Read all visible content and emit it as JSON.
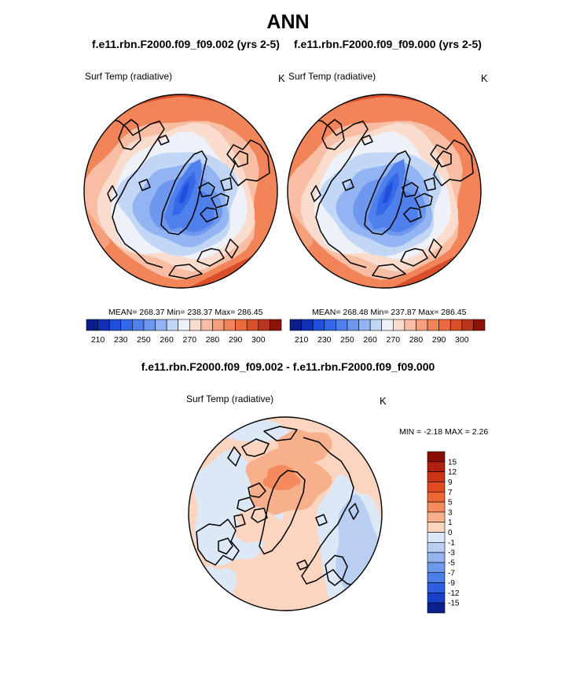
{
  "header": {
    "title": "ANN",
    "case1_title": "f.e11.rbn.F2000.f09_f09.002 (yrs 2-5)",
    "case2_title": "f.e11.rbn.F2000.f09_f09.000 (yrs 2-5)",
    "diff_title": "f.e11.rbn.F2000.f09_f09.002 - f.e11.rbn.F2000.f09_f09.000"
  },
  "panels": {
    "case1": {
      "variable": "Surf Temp (radiative)",
      "units": "K",
      "stats_text": "MEAN= 268.37  Min= 238.37  Max= 286.45"
    },
    "case2": {
      "variable": "Surf Temp (radiative)",
      "units": "K",
      "stats_text": "MEAN= 268.48  Min= 237.87  Max= 286.45"
    },
    "diff": {
      "variable": "Surf Temp (radiative)",
      "units": "K",
      "stats_text": "MIN =  -2.18 MAX =   2.26"
    }
  },
  "chart_data": [
    {
      "type": "polar-contour-map",
      "projection": "north-polar-stereographic",
      "title": "f.e11.rbn.F2000.f09_f09.002 (yrs 2-5)",
      "variable": "Surf Temp (radiative)",
      "units": "K",
      "mean": 268.37,
      "min": 238.37,
      "max": 286.45,
      "colorbar": {
        "orientation": "horizontal",
        "levels": [
          210,
          220,
          230,
          240,
          250,
          255,
          260,
          265,
          270,
          275,
          280,
          285,
          290,
          295,
          300
        ],
        "tick_labels": [
          "210",
          "230",
          "250",
          "260",
          "270",
          "280",
          "290",
          "300"
        ],
        "colors": [
          "#0a1f8c",
          "#1030b8",
          "#1f4fdc",
          "#3568e8",
          "#5080ec",
          "#6e98ee",
          "#92b4f2",
          "#c2d6f6",
          "#eef2f8",
          "#fadccf",
          "#f8bea4",
          "#f5a07c",
          "#f2845a",
          "#ec6a3e",
          "#d84f29",
          "#b8371c",
          "#8c1408"
        ]
      }
    },
    {
      "type": "polar-contour-map",
      "projection": "north-polar-stereographic",
      "title": "f.e11.rbn.F2000.f09_f09.000 (yrs 2-5)",
      "variable": "Surf Temp (radiative)",
      "units": "K",
      "mean": 268.48,
      "min": 237.87,
      "max": 286.45,
      "colorbar": {
        "orientation": "horizontal",
        "levels": [
          210,
          220,
          230,
          240,
          250,
          255,
          260,
          265,
          270,
          275,
          280,
          285,
          290,
          295,
          300
        ],
        "tick_labels": [
          "210",
          "230",
          "250",
          "260",
          "270",
          "280",
          "290",
          "300"
        ],
        "colors": [
          "#0a1f8c",
          "#1030b8",
          "#1f4fdc",
          "#3568e8",
          "#5080ec",
          "#6e98ee",
          "#92b4f2",
          "#c2d6f6",
          "#eef2f8",
          "#fadccf",
          "#f8bea4",
          "#f5a07c",
          "#f2845a",
          "#ec6a3e",
          "#d84f29",
          "#b8371c",
          "#8c1408"
        ]
      }
    },
    {
      "type": "polar-contour-map",
      "projection": "north-polar-stereographic",
      "title": "f.e11.rbn.F2000.f09_f09.002 - f.e11.rbn.F2000.f09_f09.000",
      "variable": "Surf Temp (radiative)",
      "units": "K",
      "min": -2.18,
      "max": 2.26,
      "colorbar": {
        "orientation": "vertical",
        "levels": [
          15,
          12,
          9,
          7,
          5,
          3,
          1,
          0,
          -1,
          -3,
          -5,
          -7,
          -9,
          -12,
          -15
        ],
        "tick_labels": [
          "15",
          "12",
          "9",
          "7",
          "5",
          "3",
          "1",
          "0",
          "-1",
          "-3",
          "-5",
          "-7",
          "-9",
          "-12",
          "-15"
        ],
        "colors": [
          "#8a0c07",
          "#b02010",
          "#cc3418",
          "#e04a22",
          "#ee6536",
          "#f48a5e",
          "#f8b08c",
          "#fbd5c0",
          "#dde8f6",
          "#b8cff2",
          "#93b4ee",
          "#6e98ea",
          "#4d7de6",
          "#2f5fe0",
          "#1a40c8",
          "#0c208e"
        ]
      }
    }
  ]
}
